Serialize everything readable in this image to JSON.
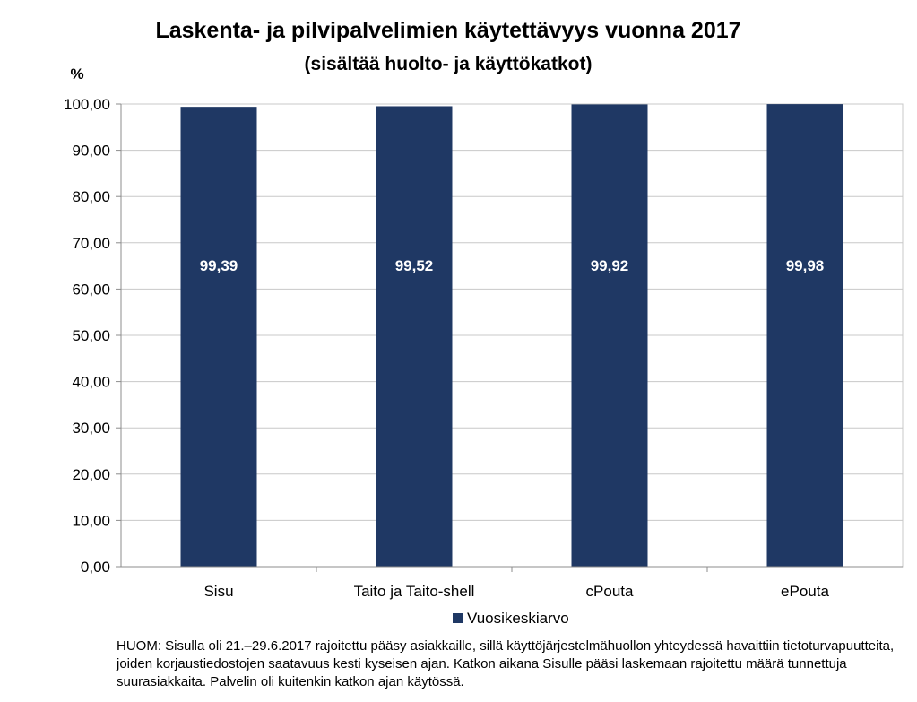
{
  "colors": {
    "bar": "#1f3864",
    "gridline": "#c8c8c8",
    "axis": "#8c8c8c"
  },
  "note": "HUOM: Sisulla oli 21.–29.6.2017 rajoitettu pääsy asiakkaille, sillä käyttöjärjestelmähuollon yhteydessä havaittiin tietoturvapuutteita, joiden korjaustiedostojen saatavuus kesti kyseisen ajan. Katkon aikana Sisulle pääsi laskemaan rajoitettu määrä tunnettuja suurasiakkaita. Palvelin oli kuitenkin katkon ajan käytössä.",
  "chart_data": {
    "type": "bar",
    "title": "Laskenta- ja pilvipalvelimien käytettävyys vuonna 2017",
    "subtitle": "(sisältää huolto- ja käyttökatkot)",
    "ylabel": "%",
    "xlabel": "",
    "categories": [
      "Sisu",
      "Taito ja Taito-shell",
      "cPouta",
      "ePouta"
    ],
    "series": [
      {
        "name": "Vuosikeskiarvo",
        "values": [
          99.39,
          99.52,
          99.92,
          99.98
        ],
        "data_labels": [
          "99,39",
          "99,52",
          "99,92",
          "99,98"
        ]
      }
    ],
    "ylim": [
      0,
      100
    ],
    "yticks": [
      0,
      10,
      20,
      30,
      40,
      50,
      60,
      70,
      80,
      90,
      100
    ],
    "ytick_labels": [
      "0,00",
      "10,00",
      "20,00",
      "30,00",
      "40,00",
      "50,00",
      "60,00",
      "70,00",
      "80,00",
      "90,00",
      "100,00"
    ],
    "grid": true,
    "legend": "bottom"
  }
}
